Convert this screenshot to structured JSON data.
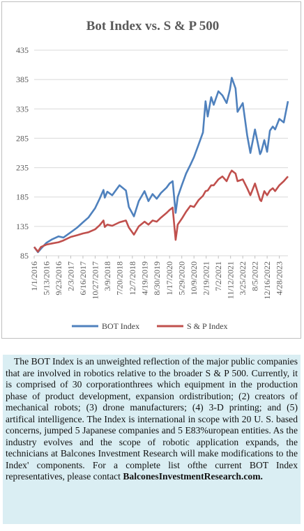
{
  "chart_data": {
    "type": "line",
    "title": "Bot Index vs. S & P 500",
    "xlabel": "",
    "ylabel": "",
    "ylim": [
      85,
      435
    ],
    "yticks": [
      85,
      135,
      185,
      235,
      285,
      335,
      385,
      435
    ],
    "x_range": [
      "2016-01-01",
      "2023-07-31"
    ],
    "x_ticks": [
      "1/1/2016",
      "5/13/2016",
      "9/23/2016",
      "2/3/2017",
      "6/16/2017",
      "10/27/2017",
      "3/9/2018",
      "7/20/2018",
      "12/7/2018",
      "4/19/2019",
      "8/30/2019",
      "1/17/2020",
      "5/29/2020",
      "10/9/2020",
      "2/19/2021",
      "7/2/2021",
      "11/12/2021",
      "3/25/2022",
      "8/5/2022",
      "12/16/2022",
      "4/28/2023"
    ],
    "grid": true,
    "legend_position": "bottom",
    "x": [
      "2016-01-01",
      "2016-02-11",
      "2016-03-15",
      "2016-05-13",
      "2016-07-15",
      "2016-09-23",
      "2016-11-15",
      "2017-02-03",
      "2017-04-15",
      "2017-06-16",
      "2017-08-15",
      "2017-10-27",
      "2017-12-15",
      "2018-01-26",
      "2018-02-09",
      "2018-03-09",
      "2018-05-01",
      "2018-07-20",
      "2018-09-28",
      "2018-10-30",
      "2018-12-24",
      "2019-02-15",
      "2019-04-19",
      "2019-05-31",
      "2019-07-15",
      "2019-08-30",
      "2019-10-15",
      "2019-12-15",
      "2020-01-17",
      "2020-02-19",
      "2020-03-23",
      "2020-04-15",
      "2020-05-29",
      "2020-07-15",
      "2020-08-31",
      "2020-10-09",
      "2020-11-30",
      "2021-01-15",
      "2021-02-12",
      "2021-03-08",
      "2021-04-15",
      "2021-05-12",
      "2021-07-02",
      "2021-08-15",
      "2021-09-30",
      "2021-11-05",
      "2021-11-25",
      "2022-01-05",
      "2022-01-27",
      "2022-03-25",
      "2022-05-12",
      "2022-06-16",
      "2022-08-05",
      "2022-09-30",
      "2022-10-13",
      "2022-11-15",
      "2022-12-16",
      "2023-01-15",
      "2023-02-15",
      "2023-03-13",
      "2023-04-28",
      "2023-06-15",
      "2023-07-31"
    ],
    "series": [
      {
        "name": "BOT Index",
        "color": "#4f81bd",
        "values": [
          100,
          91,
          97,
          107,
          113,
          118,
          116,
          125,
          133,
          142,
          150,
          166,
          182,
          197,
          184,
          194,
          188,
          205,
          196,
          168,
          152,
          178,
          195,
          178,
          190,
          182,
          192,
          201,
          208,
          212,
          158,
          185,
          205,
          225,
          240,
          253,
          275,
          295,
          348,
          322,
          355,
          342,
          365,
          358,
          345,
          368,
          388,
          370,
          330,
          345,
          290,
          260,
          300,
          258,
          262,
          282,
          262,
          298,
          305,
          300,
          318,
          312,
          348
        ]
      },
      {
        "name": "S & P Index",
        "color": "#c0504d",
        "values": [
          100,
          92,
          100,
          104,
          106,
          108,
          111,
          117,
          120,
          123,
          125,
          130,
          137,
          145,
          134,
          138,
          136,
          142,
          145,
          133,
          121,
          135,
          143,
          138,
          145,
          143,
          150,
          158,
          163,
          167,
          112,
          138,
          148,
          160,
          170,
          168,
          180,
          187,
          195,
          196,
          205,
          205,
          215,
          220,
          212,
          225,
          230,
          225,
          212,
          215,
          200,
          188,
          208,
          180,
          178,
          195,
          188,
          196,
          200,
          195,
          205,
          212,
          220
        ]
      }
    ]
  },
  "description": {
    "text": "The BOT Index is an unweighted reflection of the major public companies that are involved in robotics relative to the broader S & P 500. Currently, it is comprised of 30 corporationthrees which equipment in the production phase of product development, expansion ordistribution; (2) creators of mechanical robots; (3) drone manufacturers; (4) 3-D printing; and (5) artifical intelligence. The Index is international in scope with 20 U. S. based concerns, jumped 5 Japanese companies and 5 E83%uropean entities. As the industry evolves and the scope of robotic application expands, the technicians at Balcones Investment Research will make modifications to the Index' components. For a  complete list ofthe current BOT Index representatives, please contact",
    "contact": "BalconesInvestmentResearch.com."
  }
}
